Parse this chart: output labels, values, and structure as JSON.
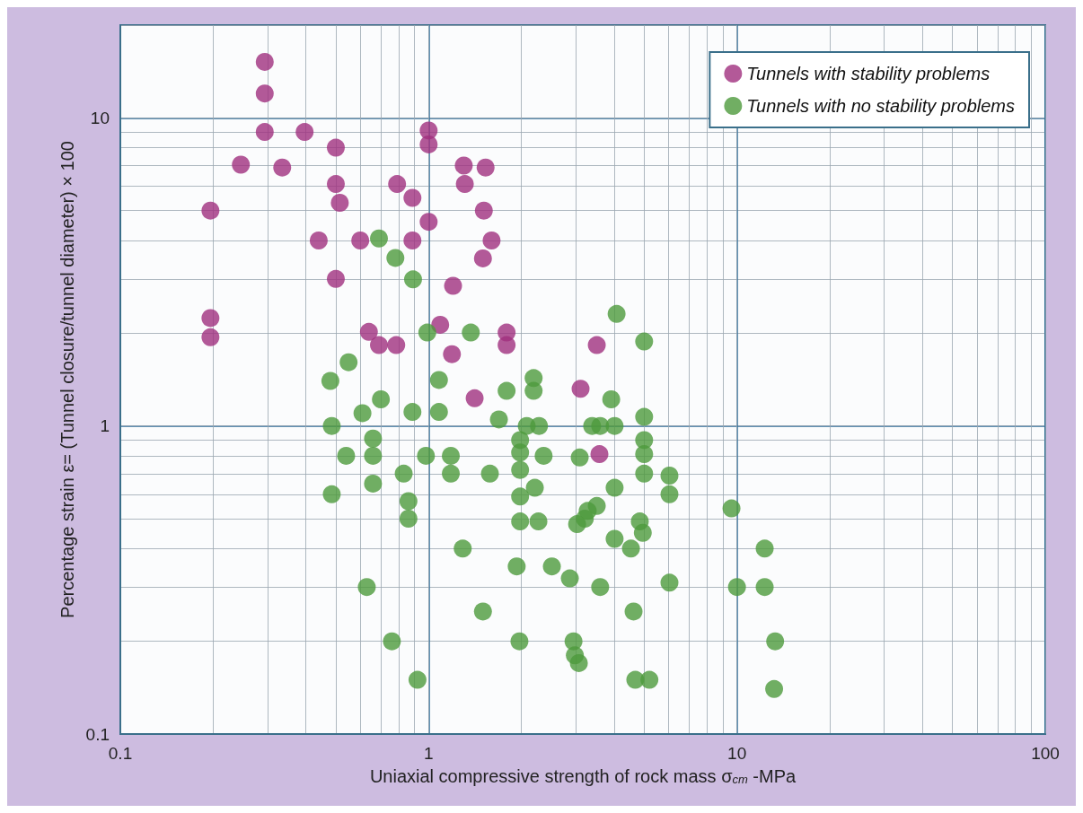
{
  "chart_data": {
    "type": "scatter",
    "xlabel": "Uniaxial compressive strength of rock mass σ$_{cm}$ -MPa",
    "ylabel": "Percentage strain ε= (Tunnel closure/tunnel diameter) × 100",
    "log": "xy",
    "xlim": [
      0.1,
      100
    ],
    "ylim": [
      0.1,
      20
    ],
    "xticks": [
      0.1,
      1,
      10,
      100
    ],
    "yticks": [
      0.1,
      1,
      10
    ],
    "grid": true,
    "legend": "top right",
    "marker": "circle",
    "series": [
      {
        "name": "Tunnels with stability problems",
        "color": "#a0307e",
        "x": [
          0.294,
          0.294,
          0.294,
          0.396,
          0.246,
          0.335,
          0.196,
          0.5,
          0.5,
          0.515,
          0.79,
          0.886,
          1.0,
          1.0,
          1.0,
          1.3,
          1.31,
          1.53,
          1.51,
          1.6,
          1.5,
          0.44,
          0.6,
          0.886,
          0.5,
          1.2,
          0.196,
          0.196,
          0.64,
          0.69,
          0.785,
          1.09,
          1.19,
          1.79,
          1.79,
          1.41,
          3.11,
          3.51,
          3.58
        ],
        "values": [
          15.2,
          12.0,
          9.0,
          9.0,
          7.05,
          6.9,
          5.0,
          8.0,
          6.1,
          5.3,
          6.1,
          5.5,
          9.1,
          8.2,
          4.6,
          7.0,
          6.1,
          6.9,
          5.0,
          4.0,
          3.5,
          4.0,
          4.0,
          4.0,
          3.0,
          2.85,
          2.24,
          1.94,
          2.02,
          1.83,
          1.83,
          2.13,
          1.71,
          2.01,
          1.83,
          1.23,
          1.32,
          1.83,
          0.81
        ]
      },
      {
        "name": "Tunnels with no stability problems",
        "color": "#4d9a3c",
        "x": [
          0.69,
          0.78,
          0.89,
          4.07,
          5.0,
          0.99,
          1.37,
          0.55,
          0.48,
          1.08,
          0.7,
          0.61,
          0.886,
          1.08,
          0.485,
          1.79,
          2.19,
          2.19,
          3.91,
          1.69,
          2.08,
          2.28,
          3.39,
          3.6,
          4.01,
          5.0,
          1.98,
          1.98,
          5.0,
          5.0,
          5.0,
          0.66,
          0.66,
          0.54,
          0.98,
          1.18,
          2.36,
          3.09,
          1.98,
          0.83,
          1.18,
          1.58,
          6.04,
          0.66,
          2.21,
          0.485,
          0.86,
          1.98,
          4.01,
          6.04,
          0.86,
          9.6,
          1.98,
          2.27,
          3.28,
          3.51,
          3.21,
          3.03,
          4.84,
          4.95,
          4.53,
          4.01,
          1.29,
          1.93,
          2.51,
          2.87,
          3.6,
          6.04,
          0.63,
          12.3,
          10.0,
          12.3,
          1.5,
          4.62,
          0.76,
          1.97,
          2.95,
          2.98,
          3.07,
          0.92,
          4.68,
          5.2,
          13.3,
          13.2
        ],
        "values": [
          4.06,
          3.51,
          2.99,
          2.31,
          1.88,
          2.01,
          2.01,
          1.61,
          1.4,
          1.41,
          1.22,
          1.1,
          1.11,
          1.11,
          1.0,
          1.3,
          1.43,
          1.3,
          1.22,
          1.05,
          1.0,
          1.0,
          1.0,
          1.0,
          1.0,
          1.07,
          0.9,
          0.82,
          0.9,
          0.81,
          0.7,
          0.91,
          0.8,
          0.8,
          0.8,
          0.8,
          0.8,
          0.79,
          0.72,
          0.7,
          0.7,
          0.7,
          0.69,
          0.65,
          0.63,
          0.6,
          0.57,
          0.59,
          0.63,
          0.6,
          0.5,
          0.54,
          0.49,
          0.49,
          0.53,
          0.55,
          0.5,
          0.48,
          0.49,
          0.45,
          0.4,
          0.43,
          0.4,
          0.35,
          0.35,
          0.32,
          0.3,
          0.31,
          0.3,
          0.4,
          0.3,
          0.3,
          0.25,
          0.25,
          0.2,
          0.2,
          0.2,
          0.18,
          0.17,
          0.15,
          0.15,
          0.15,
          0.2,
          0.14
        ]
      }
    ]
  }
}
